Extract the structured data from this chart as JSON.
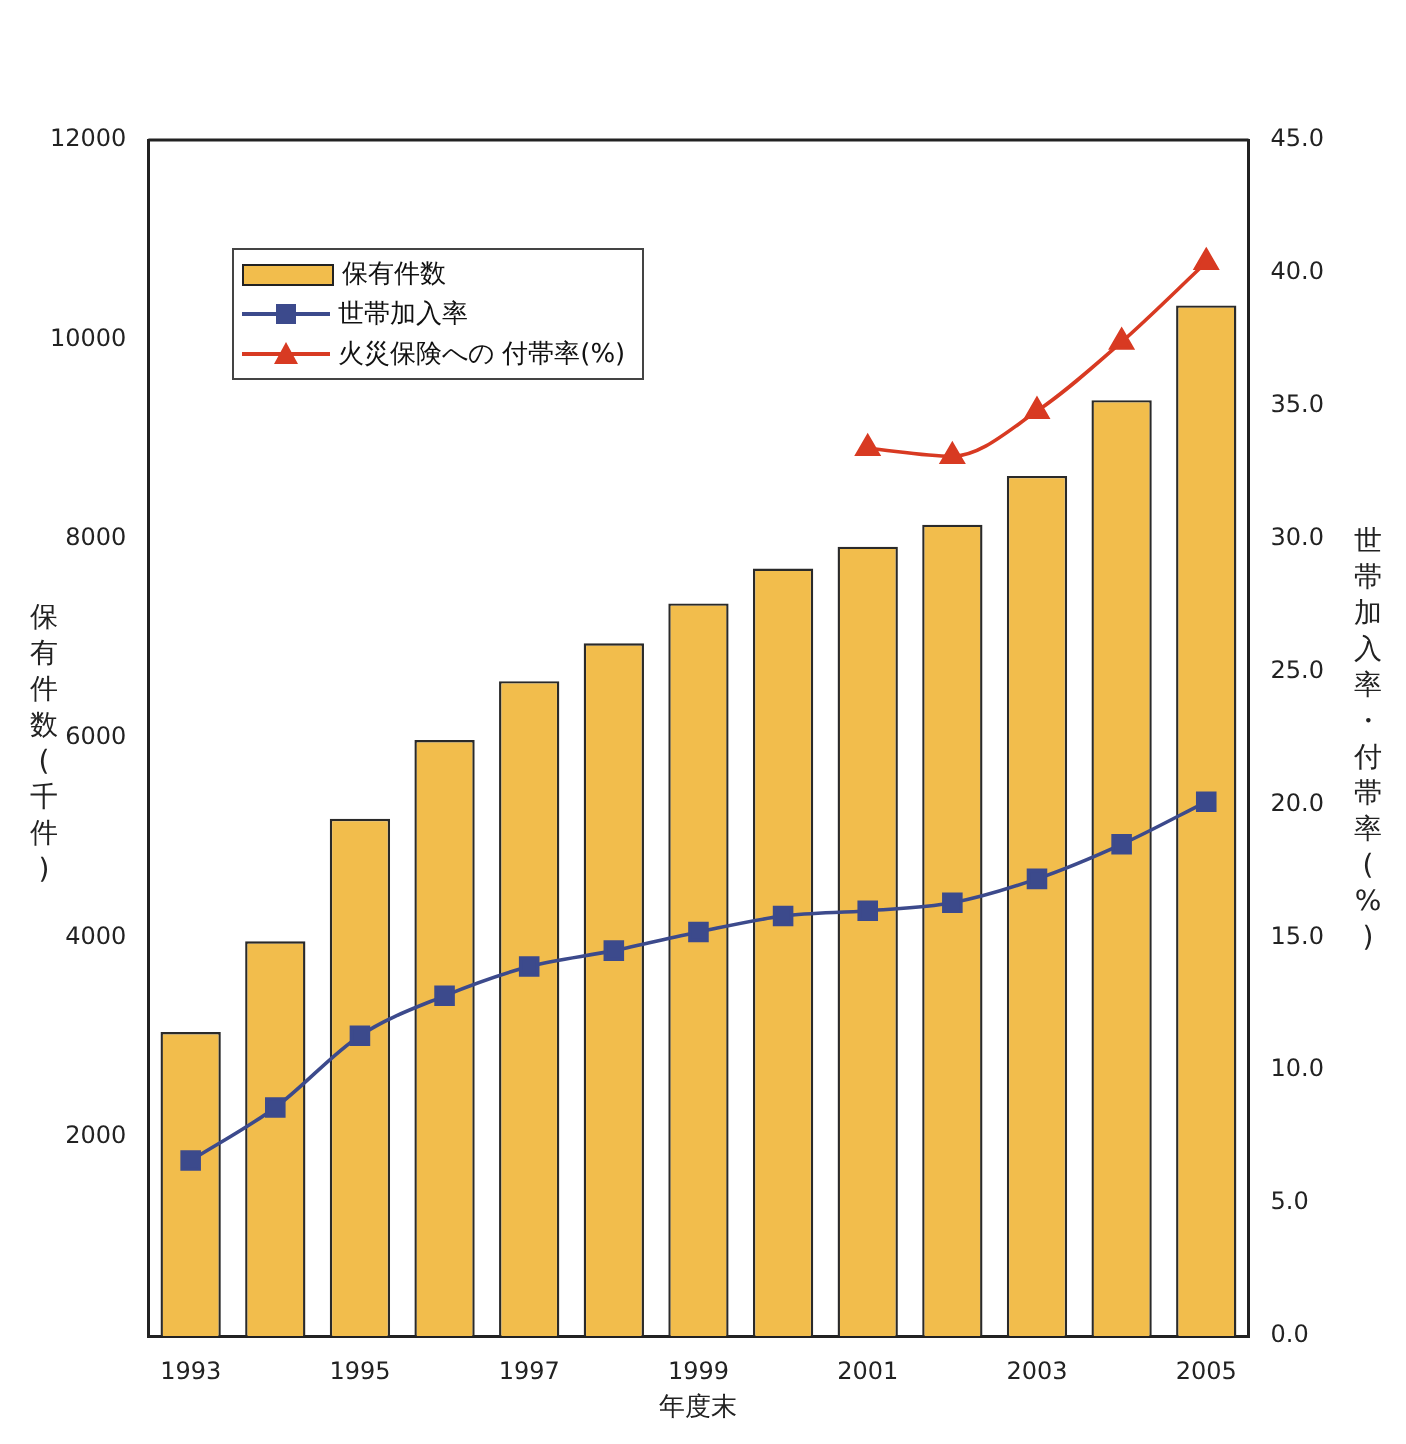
{
  "chart_data": {
    "type": "bar",
    "xlabel": "年度末",
    "ylabel": "保有件数(千件)",
    "y2label": "世帯加入率・付帯率(%)",
    "categories": [
      "1993",
      null,
      "1995",
      null,
      "1997",
      null,
      "1999",
      null,
      "2001",
      null,
      "2003",
      null,
      "2005"
    ],
    "series": [
      {
        "name": "保有件数",
        "color": "#f2bd4c",
        "values": [
          3050,
          3960,
          5190,
          5980,
          6570,
          6950,
          7350,
          7700,
          7920,
          8140,
          8630,
          9390,
          10340
        ]
      },
      {
        "name": "世帯加入率",
        "type": "line",
        "axis": "y2",
        "marker": "square",
        "color": "#3c4a8c",
        "values": [
          6.6,
          8.6,
          11.3,
          12.8,
          13.9,
          14.5,
          15.2,
          15.8,
          16.0,
          16.3,
          17.2,
          18.5,
          20.1
        ]
      },
      {
        "name": "火災保険への 付帯率(%)",
        "type": "line",
        "axis": "y2",
        "marker": "triangle",
        "color": "#d83a22",
        "values": [
          null,
          null,
          null,
          null,
          null,
          null,
          null,
          null,
          33.4,
          33.1,
          34.8,
          37.4,
          40.4
        ]
      }
    ],
    "ylim": [
      0,
      12000
    ],
    "yticks": [
      2000,
      4000,
      6000,
      8000,
      10000,
      12000
    ],
    "y2lim": [
      0,
      45
    ],
    "y2ticks": [
      {
        "value": 0,
        "label": "0.0"
      },
      {
        "value": 5,
        "label": "5.0"
      },
      {
        "value": 10,
        "label": "10.0"
      },
      {
        "value": 15,
        "label": "15.0"
      },
      {
        "value": 20,
        "label": "20.0"
      },
      {
        "value": 25,
        "label": "25.0"
      },
      {
        "value": 30,
        "label": "30.0"
      },
      {
        "value": 35,
        "label": "35.0"
      },
      {
        "value": 40,
        "label": "40.0"
      },
      {
        "value": 45,
        "label": "45.0"
      }
    ],
    "grid": false,
    "legend": "top left"
  }
}
